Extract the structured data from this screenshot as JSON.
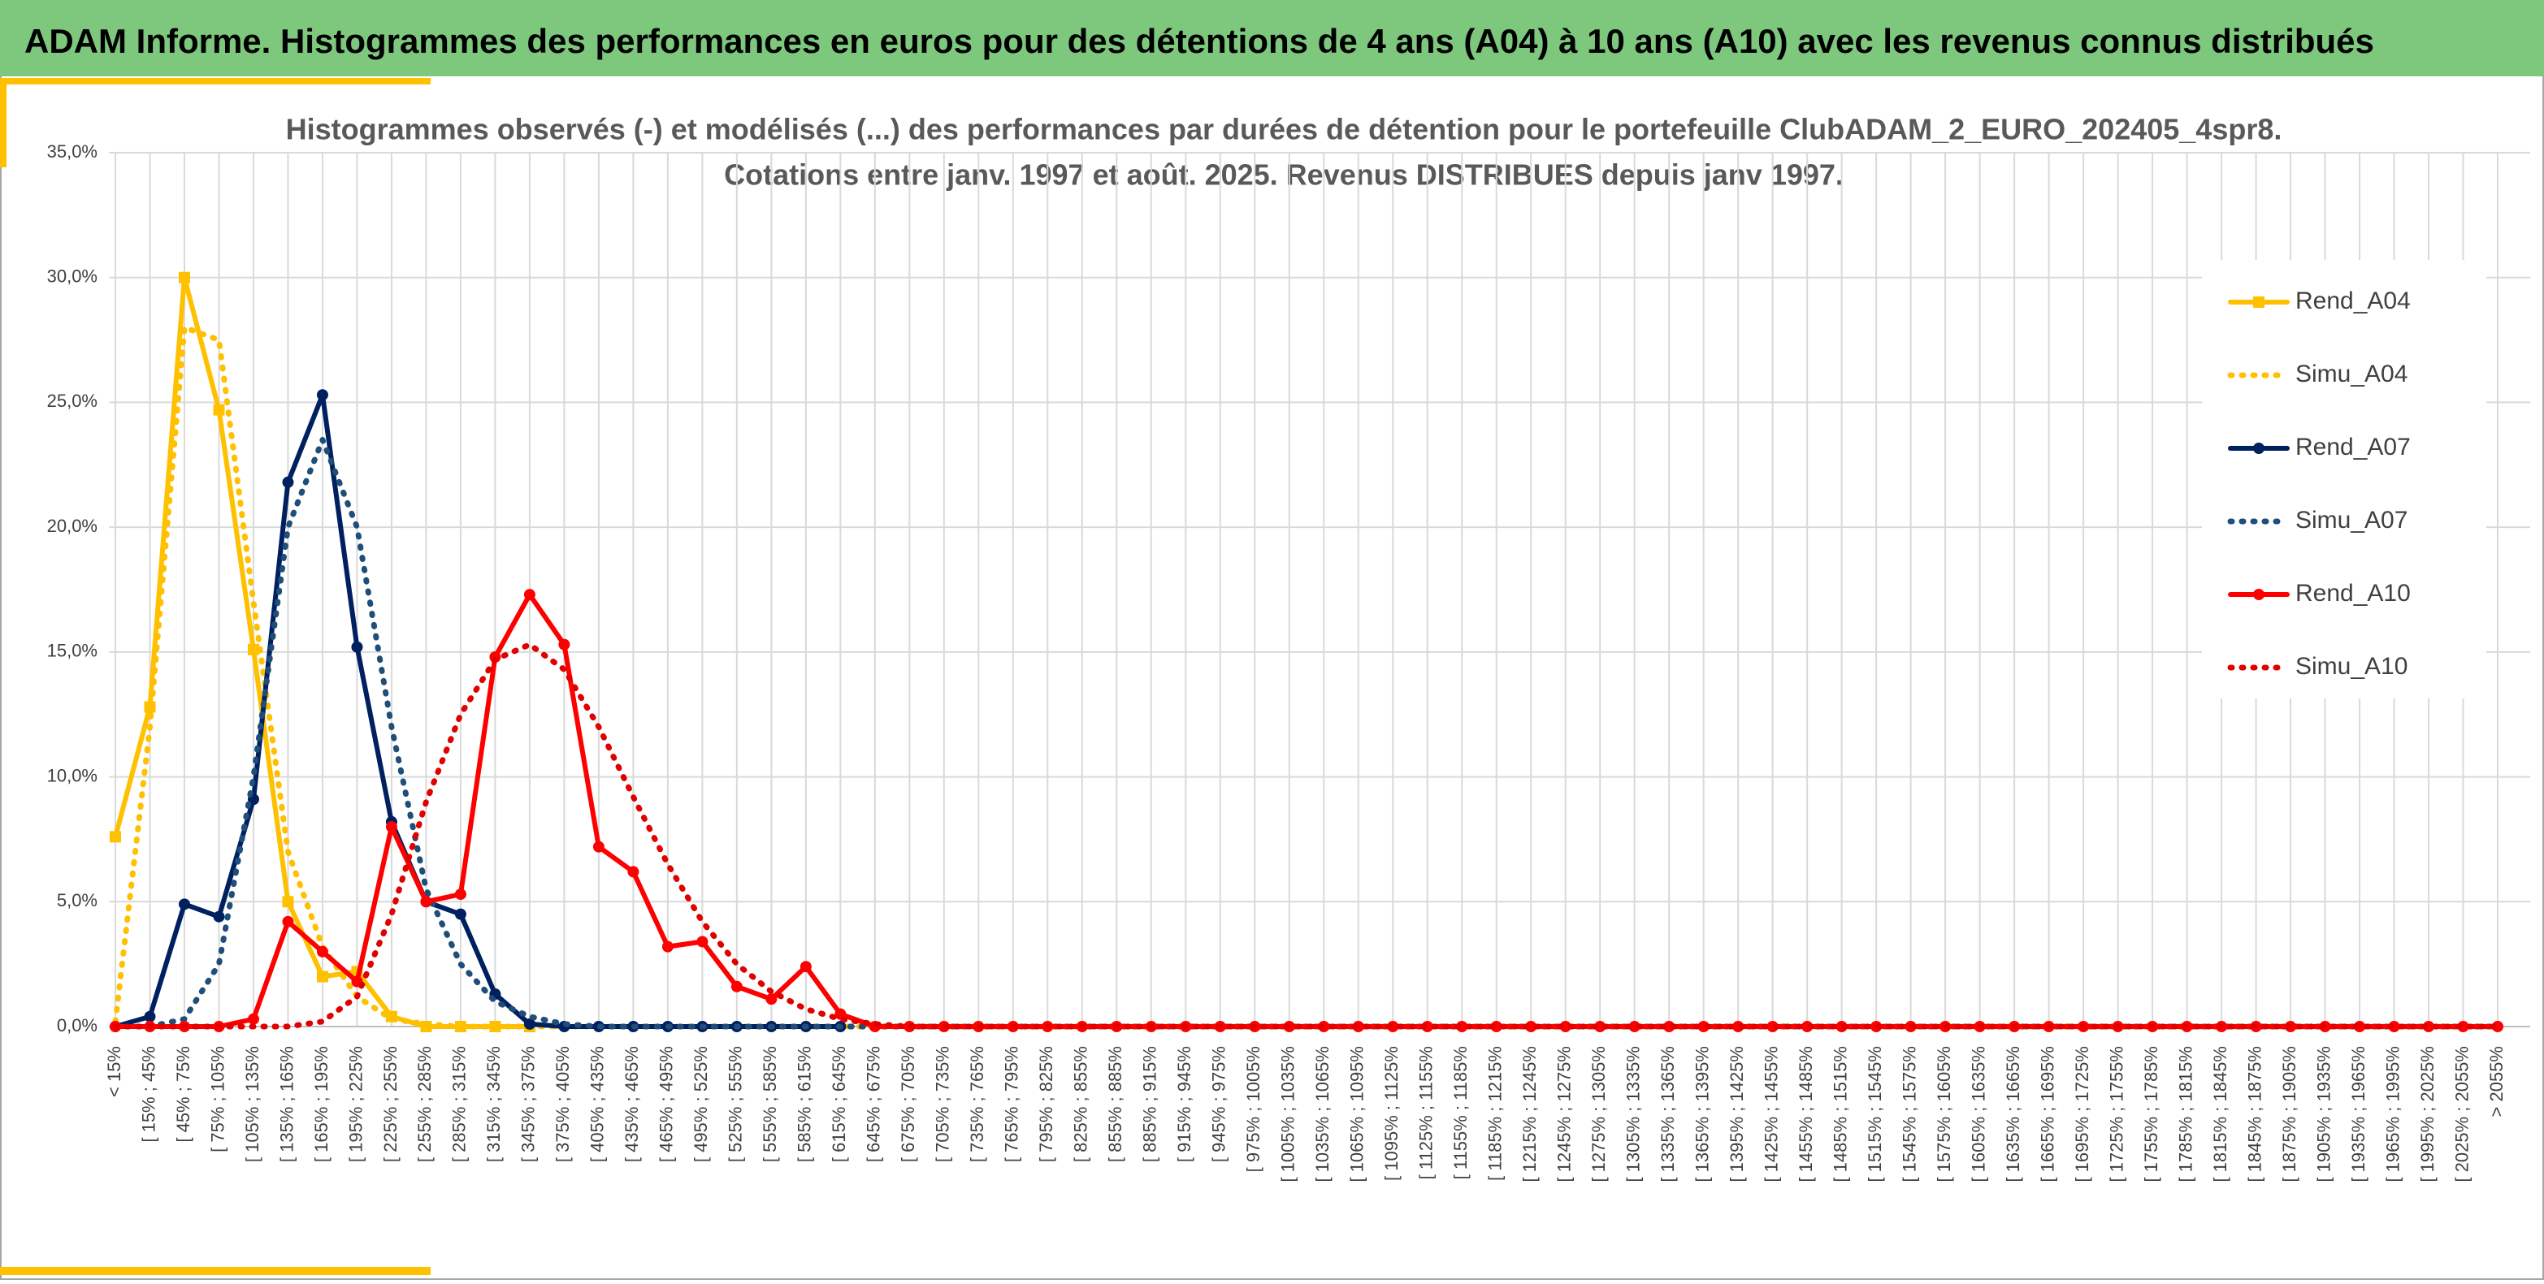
{
  "header": {
    "title": "ADAM Informe. Histogrammes des performances en euros pour des détentions de 4 ans (A04) à 10 ans (A10) avec les revenus connus distribués"
  },
  "chart_data": {
    "type": "line",
    "title": "Histogrammes observés (-) et modélisés (...) des performances par durées de détention pour le portefeuille ClubADAM_2_EURO_202405_4spr8.",
    "subtitle": "Cotations entre janv. 1997 et août. 2025. Revenus DISTRIBUES depuis janv 1997.",
    "categories": [
      "< 15%",
      "[ 15% ; 45%",
      "[ 45% ; 75%",
      "[ 75% ; 105%",
      "[ 105% ; 135%",
      "[ 135% ; 165%",
      "[ 165% ; 195%",
      "[ 195% ; 225%",
      "[ 225% ; 255%",
      "[ 255% ; 285%",
      "[ 285% ; 315%",
      "[ 315% ; 345%",
      "[ 345% ; 375%",
      "[ 375% ; 405%",
      "[ 405% ; 435%",
      "[ 435% ; 465%",
      "[ 465% ; 495%",
      "[ 495% ; 525%",
      "[ 525% ; 555%",
      "[ 555% ; 585%",
      "[ 585% ; 615%",
      "[ 615% ; 645%",
      "[ 645% ; 675%",
      "[ 675% ; 705%",
      "[ 705% ; 735%",
      "[ 735% ; 765%",
      "[ 765% ; 795%",
      "[ 795% ; 825%",
      "[ 825% ; 855%",
      "[ 855% ; 885%",
      "[ 885% ; 915%",
      "[ 915% ; 945%",
      "[ 945% ; 975%",
      "[ 975% ; 1005%",
      "[ 1005% ; 1035%",
      "[ 1035% ; 1065%",
      "[ 1065% ; 1095%",
      "[ 1095% ; 1125%",
      "[ 1125% ; 1155%",
      "[ 1155% ; 1185%",
      "[ 1185% ; 1215%",
      "[ 1215% ; 1245%",
      "[ 1245% ; 1275%",
      "[ 1275% ; 1305%",
      "[ 1305% ; 1335%",
      "[ 1335% ; 1365%",
      "[ 1365% ; 1395%",
      "[ 1395% ; 1425%",
      "[ 1425% ; 1455%",
      "[ 1455% ; 1485%",
      "[ 1485% ; 1515%",
      "[ 1515% ; 1545%",
      "[ 1545% ; 1575%",
      "[ 1575% ; 1605%",
      "[ 1605% ; 1635%",
      "[ 1635% ; 1665%",
      "[ 1665% ; 1695%",
      "[ 1695% ; 1725%",
      "[ 1725% ; 1755%",
      "[ 1755% ; 1785%",
      "[ 1785% ; 1815%",
      "[ 1815% ; 1845%",
      "[ 1845% ; 1875%",
      "[ 1875% ; 1905%",
      "[ 1905% ; 1935%",
      "[ 1935% ; 1965%",
      "[ 1965% ; 1995%",
      "[ 1995% ; 2025%",
      "[ 2025% ; 2055%",
      "> 2055%"
    ],
    "series": [
      {
        "name": "Rend_A04",
        "color": "#ffc000",
        "style": "solid",
        "marker": "square",
        "values": [
          7.6,
          12.8,
          30.0,
          24.7,
          15.1,
          5.0,
          2.0,
          2.2,
          0.4,
          0,
          0,
          0,
          0,
          null,
          null,
          null,
          null,
          null,
          null,
          null,
          null,
          null,
          null,
          null,
          null,
          null,
          null,
          null,
          null,
          null,
          null,
          null,
          null,
          null,
          null,
          null,
          null,
          null,
          null,
          null,
          null,
          null,
          null,
          null,
          null,
          null,
          null,
          null,
          null,
          null,
          null,
          null,
          null,
          null,
          null,
          null,
          null,
          null,
          null,
          null,
          null,
          null,
          null,
          null,
          null,
          null,
          null,
          null,
          null,
          null
        ]
      },
      {
        "name": "Simu_A04",
        "color": "#ffc000",
        "style": "dotted",
        "marker": "none",
        "values": [
          0.2,
          12,
          28,
          27.5,
          17,
          7,
          3.2,
          1.2,
          0.3,
          0.1,
          0,
          0,
          0,
          0,
          0,
          0,
          0,
          0,
          0,
          0,
          0,
          0,
          0,
          0,
          0,
          0,
          0,
          0,
          0,
          0,
          0,
          0,
          0,
          0,
          0,
          0,
          0,
          0,
          0,
          0,
          0,
          0,
          0,
          0,
          0,
          0,
          0,
          0,
          0,
          0,
          0,
          0,
          0,
          0,
          0,
          0,
          0,
          0,
          0,
          0,
          0,
          0,
          0,
          0,
          0,
          0,
          0,
          0,
          0,
          0
        ]
      },
      {
        "name": "Rend_A07",
        "color": "#002060",
        "style": "solid",
        "marker": "circle",
        "values": [
          0,
          0.4,
          4.9,
          4.4,
          9.1,
          21.8,
          25.3,
          15.2,
          8.2,
          5.0,
          4.5,
          1.3,
          0.1,
          0,
          0,
          0,
          0,
          0,
          0,
          0,
          0,
          0,
          null,
          null,
          null,
          null,
          null,
          null,
          null,
          null,
          null,
          null,
          null,
          null,
          null,
          null,
          null,
          null,
          null,
          null,
          null,
          null,
          null,
          null,
          null,
          null,
          null,
          null,
          null,
          null,
          null,
          null,
          null,
          null,
          null,
          null,
          null,
          null,
          null,
          null,
          null,
          null,
          null,
          null,
          null,
          null,
          null,
          null,
          null,
          null
        ]
      },
      {
        "name": "Simu_A07",
        "color": "#1f4e79",
        "style": "dotted",
        "marker": "none",
        "values": [
          0,
          0,
          0.3,
          2.5,
          10,
          20,
          23.5,
          20,
          12,
          5.5,
          2.5,
          1,
          0.4,
          0.1,
          0,
          0,
          0,
          0,
          0,
          0,
          0,
          0,
          0,
          0,
          0,
          0,
          0,
          0,
          0,
          0,
          0,
          0,
          0,
          0,
          0,
          0,
          0,
          0,
          0,
          0,
          0,
          0,
          0,
          0,
          0,
          0,
          0,
          0,
          0,
          0,
          0,
          0,
          0,
          0,
          0,
          0,
          0,
          0,
          0,
          0,
          0,
          0,
          0,
          0,
          0,
          0,
          0,
          0,
          0,
          0
        ]
      },
      {
        "name": "Rend_A10",
        "color": "#ff0000",
        "style": "solid",
        "marker": "circle",
        "values": [
          0,
          0,
          0,
          0,
          0.3,
          4.2,
          3.0,
          1.8,
          8.0,
          5.0,
          5.3,
          14.8,
          17.3,
          15.3,
          7.2,
          6.2,
          3.2,
          3.4,
          1.6,
          1.1,
          2.4,
          0.5,
          0,
          0,
          0,
          0,
          0,
          0,
          0,
          0,
          0,
          0,
          0,
          0,
          0,
          0,
          0,
          0,
          0,
          0,
          0,
          0,
          0,
          0,
          0,
          0,
          0,
          0,
          0,
          0,
          0,
          0,
          0,
          0,
          0,
          0,
          0,
          0,
          0,
          0,
          0,
          0,
          0,
          0,
          0,
          0,
          0,
          0,
          0,
          0
        ]
      },
      {
        "name": "Simu_A10",
        "color": "#e00000",
        "style": "dotted",
        "marker": "none",
        "values": [
          0,
          0,
          0,
          0,
          0,
          0,
          0.2,
          1.2,
          4.5,
          9,
          12.5,
          14.7,
          15.3,
          14.3,
          12,
          9.2,
          6.5,
          4.2,
          2.5,
          1.4,
          0.7,
          0.3,
          0.1,
          0,
          0,
          0,
          0,
          0,
          0,
          0,
          0,
          0,
          0,
          0,
          0,
          0,
          0,
          0,
          0,
          0,
          0,
          0,
          0,
          0,
          0,
          0,
          0,
          0,
          0,
          0,
          0,
          0,
          0,
          0,
          0,
          0,
          0,
          0,
          0,
          0,
          0,
          0,
          0,
          0,
          0,
          0,
          0,
          0,
          0,
          0
        ]
      }
    ],
    "ylim": [
      0,
      35
    ],
    "yticks": [
      {
        "value": 0,
        "label": "0,0%"
      },
      {
        "value": 5,
        "label": "5,0%"
      },
      {
        "value": 10,
        "label": "10,0%"
      },
      {
        "value": 15,
        "label": "15,0%"
      },
      {
        "value": 20,
        "label": "20,0%"
      },
      {
        "value": 25,
        "label": "25,0%"
      },
      {
        "value": 30,
        "label": "30,0%"
      },
      {
        "value": 35,
        "label": "35,0%"
      }
    ],
    "grid": true,
    "legend": "right"
  }
}
